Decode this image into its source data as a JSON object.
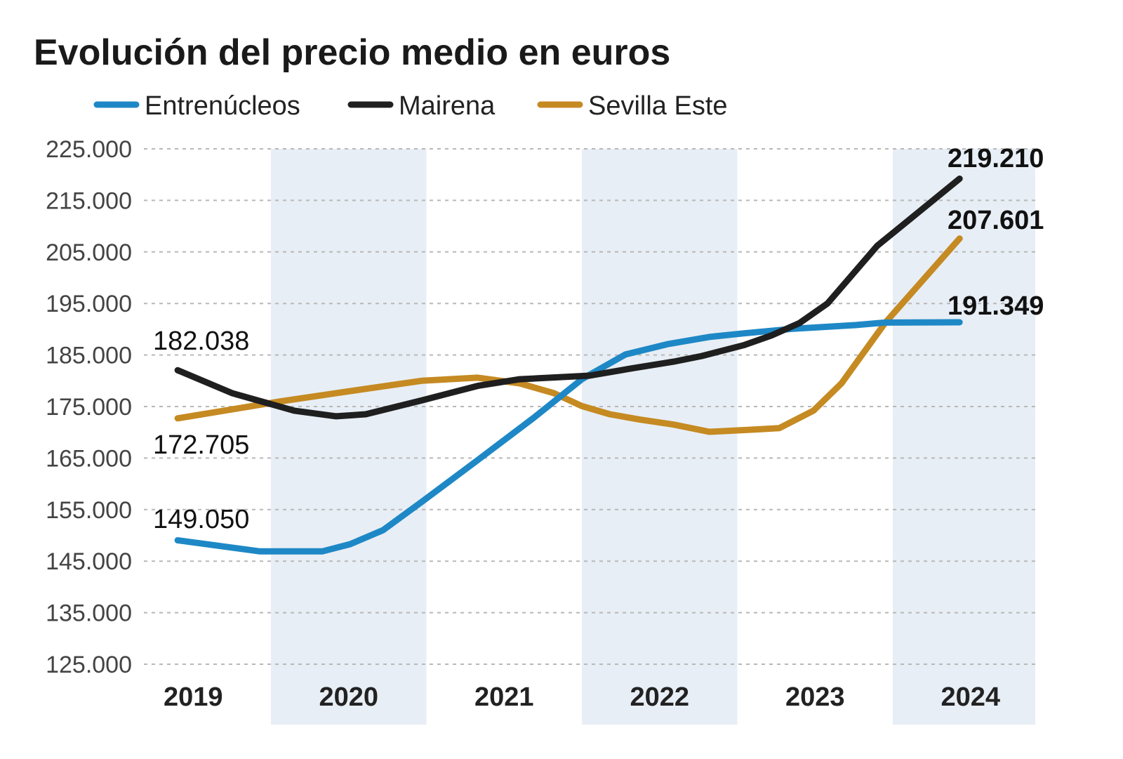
{
  "chart_data": {
    "type": "line",
    "title": "Evolución del precio medio en euros",
    "xlabel": "",
    "ylabel": "",
    "ylim": [
      125000,
      225000
    ],
    "xlim": [
      2019,
      2025
    ],
    "yticks": [
      225000,
      215000,
      205000,
      195000,
      185000,
      175000,
      165000,
      155000,
      145000,
      135000,
      125000
    ],
    "ytick_labels": [
      "225.000",
      "215.000",
      "205.000",
      "195.000",
      "185.000",
      "175.000",
      "165.000",
      "155.000",
      "145.000",
      "135.000",
      "125.000"
    ],
    "categories": [
      "2019",
      "2020",
      "2021",
      "2022",
      "2023",
      "2024"
    ],
    "grid": "horizontal dashed",
    "alternating_year_bands": true,
    "band_color": "#e8eef5",
    "legend_position": "top-left",
    "series": [
      {
        "name": "Entrenúcleos",
        "color": "#1e88c6",
        "x": [
          2019.4,
          2019.93,
          2020.33,
          2020.51,
          2020.72,
          2020.97,
          2021.33,
          2021.69,
          2022.0,
          2022.28,
          2022.55,
          2022.82,
          2023.04,
          2023.36,
          2023.76,
          2023.95,
          2024.43
        ],
        "y": [
          149050,
          146900,
          146900,
          148300,
          151000,
          156500,
          164600,
          172800,
          180300,
          185100,
          187100,
          188500,
          189200,
          190100,
          190800,
          191300,
          191349
        ],
        "start_label": "149.050",
        "end_label": "191.349"
      },
      {
        "name": "Mairena",
        "color": "#1f1f1f",
        "x": [
          2019.4,
          2019.75,
          2020.15,
          2020.42,
          2020.61,
          2020.97,
          2021.33,
          2021.6,
          2022.05,
          2022.32,
          2022.59,
          2022.77,
          2023.04,
          2023.22,
          2023.4,
          2023.58,
          2023.9,
          2024.43
        ],
        "y": [
          182038,
          177600,
          174200,
          173100,
          173500,
          176200,
          179000,
          180300,
          181000,
          182400,
          183700,
          184800,
          186900,
          188800,
          191200,
          195000,
          206200,
          219210
        ],
        "start_label": "182.038",
        "end_label": "219.210"
      },
      {
        "name": "Sevilla Este",
        "color": "#c58a22",
        "x": [
          2019.4,
          2020.06,
          2020.42,
          2020.97,
          2021.33,
          2021.6,
          2021.82,
          2022.0,
          2022.18,
          2022.37,
          2022.59,
          2022.82,
          2023.09,
          2023.27,
          2023.49,
          2023.67,
          2023.95,
          2024.43
        ],
        "y": [
          172705,
          176000,
          177600,
          180000,
          180600,
          179500,
          177600,
          175100,
          173500,
          172500,
          171500,
          170100,
          170500,
          170800,
          174200,
          179500,
          191200,
          207601
        ],
        "start_label": "172.705",
        "end_label": "207.601"
      }
    ]
  }
}
